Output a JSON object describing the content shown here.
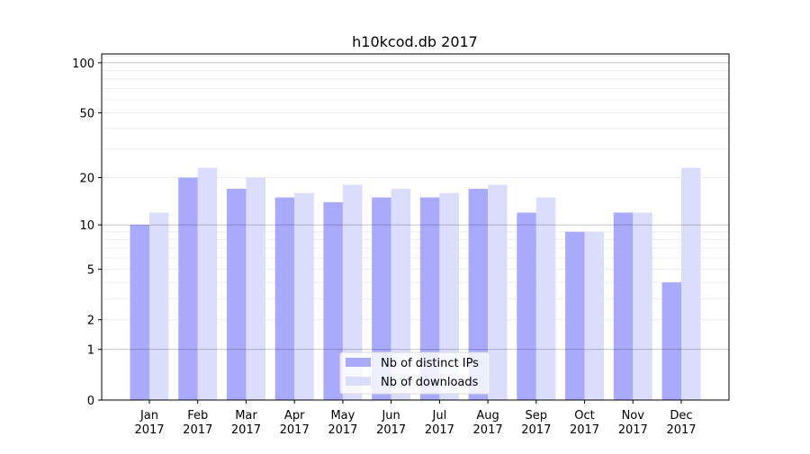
{
  "chart_data": {
    "type": "bar",
    "title": "h10kcod.db 2017",
    "xlabel": "",
    "ylabel": "",
    "yscale": "log(1+y)",
    "ylim": [
      0,
      113
    ],
    "yticks": [
      0,
      1,
      2,
      5,
      10,
      20,
      50,
      100
    ],
    "grid": true,
    "legend_position": "bottom-center",
    "categories": [
      "Jan\n2017",
      "Feb\n2017",
      "Mar\n2017",
      "Apr\n2017",
      "May\n2017",
      "Jun\n2017",
      "Jul\n2017",
      "Aug\n2017",
      "Sep\n2017",
      "Oct\n2017",
      "Nov\n2017",
      "Dec\n2017"
    ],
    "series": [
      {
        "name": "Nb of distinct IPs",
        "color": "#aaaafc",
        "values": [
          10,
          20,
          17,
          15,
          14,
          15,
          15,
          17,
          12,
          9,
          12,
          4
        ]
      },
      {
        "name": "Nb of downloads",
        "color": "#dcdcfd",
        "values": [
          12,
          23,
          20,
          16,
          18,
          17,
          16,
          18,
          15,
          9,
          12,
          23
        ]
      }
    ]
  }
}
